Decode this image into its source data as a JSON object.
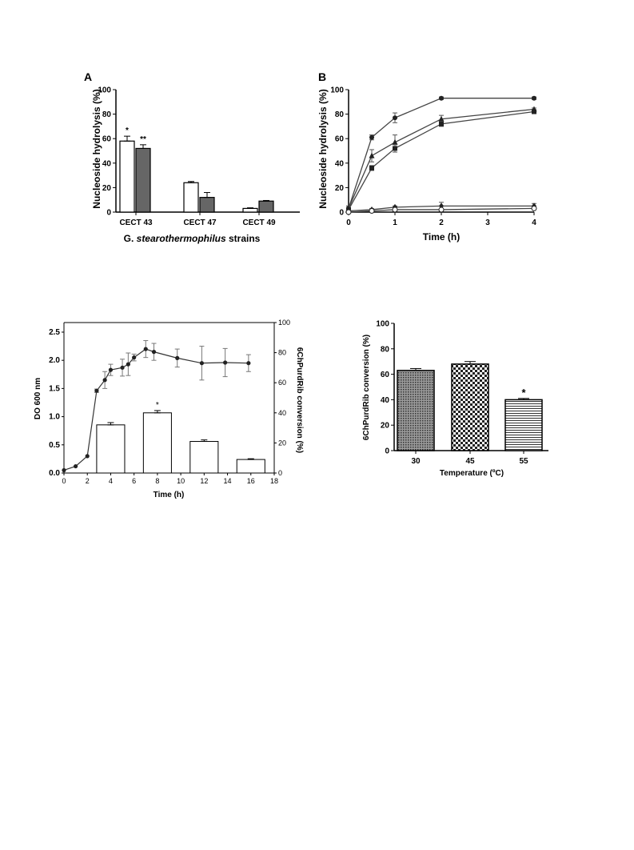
{
  "chart_data": [
    {
      "type": "bar",
      "panel": "A",
      "ylabel": "Nucleoside hydrolysis (%)",
      "xlabel_parts": [
        "G. ",
        "stearothermophilus",
        " strains"
      ],
      "yticks": [
        0,
        20,
        40,
        60,
        80,
        100
      ],
      "ylim": [
        0,
        100
      ],
      "categories": [
        "CECT 43",
        "CECT 47",
        "CECT 49"
      ],
      "series": [
        {
          "color": "#ffffff",
          "values": [
            58,
            24,
            3
          ],
          "errors": [
            4,
            1,
            0.5
          ],
          "annotations": [
            "*",
            "",
            ""
          ]
        },
        {
          "color": "#666666",
          "values": [
            52,
            12,
            9
          ],
          "errors": [
            3,
            4,
            0.5
          ],
          "annotations": [
            "**",
            "",
            ""
          ]
        }
      ]
    },
    {
      "type": "line",
      "panel": "B",
      "ylabel": "Nucleoside hydrolysis (%)",
      "xlabel": "Time (h)",
      "xticks": [
        0,
        1,
        2,
        3,
        4
      ],
      "yticks": [
        0,
        20,
        40,
        60,
        80,
        100
      ],
      "xlim": [
        0,
        4
      ],
      "ylim": [
        0,
        100
      ],
      "x": [
        0,
        0.5,
        1,
        2,
        4
      ],
      "series": [
        {
          "marker": "circle",
          "values": [
            3,
            61,
            77,
            93,
            93
          ],
          "errors": [
            2,
            2,
            4,
            1,
            1
          ]
        },
        {
          "marker": "triangle",
          "values": [
            3,
            46,
            57,
            76,
            84
          ],
          "errors": [
            2,
            5,
            6,
            3,
            1
          ]
        },
        {
          "marker": "square",
          "values": [
            2,
            36,
            52,
            72,
            82
          ],
          "errors": [
            1,
            2,
            3,
            2,
            1
          ]
        },
        {
          "marker": "diamond",
          "values": [
            1,
            2,
            4,
            5,
            5
          ],
          "errors": [
            0.5,
            1,
            1,
            3,
            2
          ]
        },
        {
          "marker": "circle-open",
          "values": [
            0,
            1,
            2,
            2,
            3
          ],
          "errors": [
            0.5,
            0.5,
            0.5,
            0.5,
            0.5
          ]
        }
      ]
    },
    {
      "type": "bar+line",
      "ylabel": "DO 600 nm",
      "y2label": "6ChPurdRib conversion (%)",
      "xlabel": "Time (h)",
      "xticks": [
        0,
        2,
        4,
        6,
        8,
        10,
        12,
        14,
        16,
        18
      ],
      "yticks": [
        "0.0",
        "0.5",
        "1.0",
        "1.5",
        "2.0",
        "2.5"
      ],
      "y2ticks": [
        0,
        20,
        40,
        60,
        80,
        100
      ],
      "xlim": [
        0,
        18
      ],
      "ylim": [
        0,
        2.67
      ],
      "y2lim": [
        0,
        100
      ],
      "bars": {
        "x": [
          4,
          8,
          12,
          16
        ],
        "values": [
          32,
          40,
          21,
          9
        ],
        "errors": [
          1.5,
          1.5,
          1,
          0.5
        ],
        "annotations": [
          "",
          "*",
          "",
          ""
        ]
      },
      "line": {
        "x": [
          0,
          1,
          2,
          2.8,
          3.5,
          4,
          5,
          5.5,
          6,
          7,
          7.7,
          9.7,
          11.8,
          13.8,
          15.8
        ],
        "values": [
          0.05,
          0.12,
          0.3,
          1.46,
          1.65,
          1.83,
          1.87,
          1.93,
          2.05,
          2.2,
          2.15,
          2.04,
          1.95,
          1.96,
          1.95
        ],
        "errors": [
          0,
          0,
          0,
          0.03,
          0.15,
          0.1,
          0.15,
          0.2,
          0.06,
          0.15,
          0.15,
          0.16,
          0.3,
          0.25,
          0.15
        ]
      }
    },
    {
      "type": "bar",
      "ylabel": "6ChPurdRib conversion (%)",
      "xlabel": "Temperature (ºC)",
      "yticks": [
        0,
        20,
        40,
        60,
        80,
        100
      ],
      "ylim": [
        0,
        100
      ],
      "categories": [
        "30",
        "45",
        "55"
      ],
      "values": [
        63,
        68,
        40
      ],
      "errors": [
        1.5,
        2,
        1
      ],
      "patterns": [
        "dots",
        "checker",
        "lines"
      ],
      "annotations": [
        "",
        "",
        "*"
      ]
    }
  ]
}
